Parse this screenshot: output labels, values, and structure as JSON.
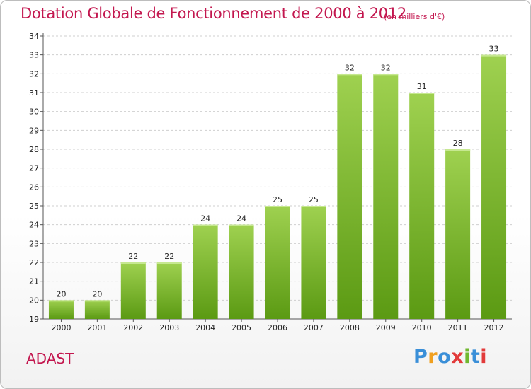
{
  "header": {
    "title": "Dotation Globale de Fonctionnement de 2000 à 2012",
    "subtitle": "(en milliers d'€)"
  },
  "footer": {
    "commune": "ADAST",
    "logo_text": "Proxiti"
  },
  "colors": {
    "title": "#c3174f",
    "bar_top": "#9fd150",
    "bar_bottom": "#5b9a13",
    "grid": "#cfcfcf",
    "axis": "#555555",
    "logo_letters": [
      "#3a8fd8",
      "#f0a020",
      "#3a8fd8",
      "#e23a3a",
      "#70b830",
      "#3a8fd8",
      "#e23a3a"
    ]
  },
  "chart_data": {
    "type": "bar",
    "categories": [
      "2000",
      "2001",
      "2002",
      "2003",
      "2004",
      "2005",
      "2006",
      "2007",
      "2008",
      "2009",
      "2010",
      "2011",
      "2012"
    ],
    "values": [
      20,
      20,
      22,
      22,
      24,
      24,
      25,
      25,
      32,
      32,
      31,
      28,
      33
    ],
    "data_labels": [
      "20",
      "20",
      "22",
      "22",
      "24",
      "24",
      "25",
      "25",
      "32",
      "32",
      "31",
      "28",
      "33"
    ],
    "title": "Dotation Globale de Fonctionnement de 2000 à 2012",
    "subtitle": "(en milliers d'€)",
    "xlabel": "",
    "ylabel": "",
    "ylim": [
      19,
      34
    ],
    "yticks": [
      "19",
      "20",
      "21",
      "22",
      "23",
      "24",
      "25",
      "26",
      "27",
      "28",
      "29",
      "30",
      "31",
      "32",
      "33",
      "34"
    ],
    "grid": true
  }
}
